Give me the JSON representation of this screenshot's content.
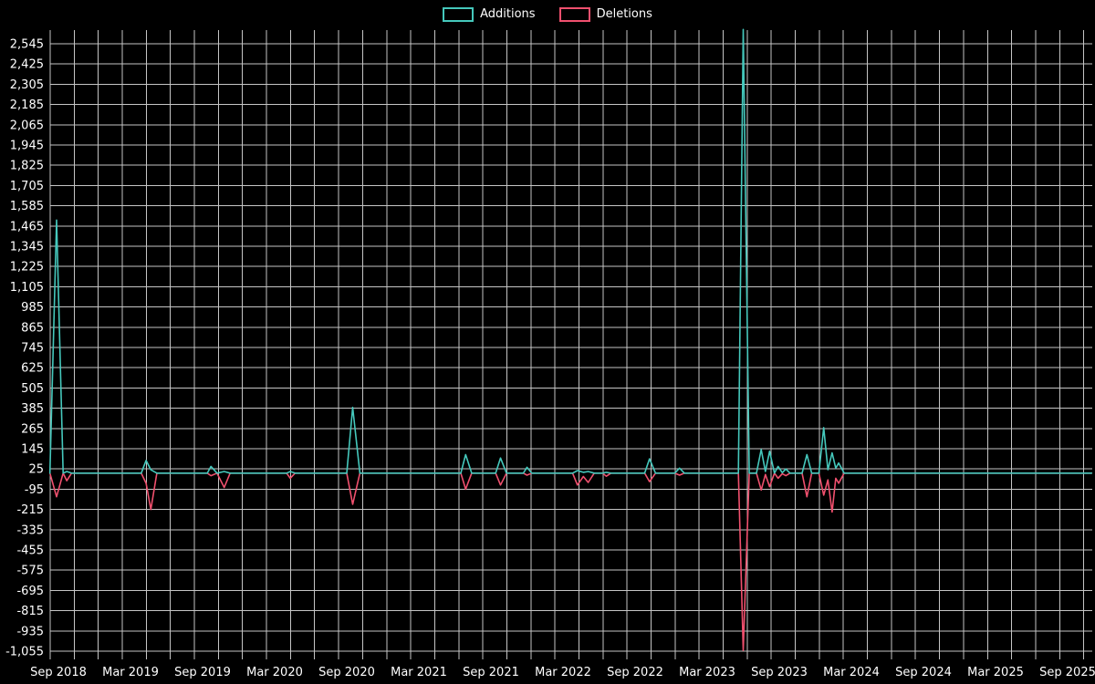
{
  "colors": {
    "background": "#000000",
    "grid": "#e8e8e8",
    "text": "#ffffff",
    "additions": "#45c8bc",
    "deletions": "#f0506e"
  },
  "legend": {
    "position": "top-center",
    "items": [
      {
        "label": "Additions",
        "color": "#45c8bc"
      },
      {
        "label": "Deletions",
        "color": "#f0506e"
      }
    ]
  },
  "chart_data": {
    "type": "line",
    "title": "",
    "grid": true,
    "legend_position": "top-center",
    "x_unit": "months since Sep 2018",
    "x_range": [
      -0.4,
      86.3
    ],
    "ylim": [
      -1090,
      2660
    ],
    "x_axis": {
      "labels": [
        "Sep 2018",
        "Mar 2019",
        "Sep 2019",
        "Mar 2020",
        "Sep 2020",
        "Mar 2021",
        "Sep 2021",
        "Mar 2022",
        "Sep 2022",
        "Mar 2023",
        "Sep 2023",
        "Mar 2024",
        "Sep 2024",
        "Mar 2025",
        "Sep 2025"
      ],
      "label_months": [
        0,
        6,
        12,
        18,
        24,
        30,
        36,
        42,
        48,
        54,
        60,
        66,
        72,
        78,
        84
      ]
    },
    "y_axis": {
      "tick_step": 120,
      "ticks": [
        2545,
        2425,
        2305,
        2185,
        2065,
        1945,
        1825,
        1705,
        1585,
        1465,
        1345,
        1225,
        1105,
        985,
        865,
        745,
        625,
        505,
        385,
        265,
        145,
        25,
        -95,
        -215,
        -335,
        -455,
        -575,
        -695,
        -815,
        -935,
        -1055
      ],
      "tick_labels": [
        "2,545",
        "2,425",
        "2,305",
        "2,185",
        "2,065",
        "1,945",
        "1,825",
        "1,705",
        "1,585",
        "1,465",
        "1,345",
        "1,225",
        "1,105",
        "985",
        "865",
        "745",
        "625",
        "505",
        "385",
        "265",
        "145",
        "25",
        "-95",
        "-215",
        "-335",
        "-455",
        "-575",
        "-695",
        "-815",
        "-935",
        "-1,055"
      ]
    },
    "x": [
      -0.4,
      0.15,
      0.7,
      1.0,
      1.4,
      7.2,
      7.6,
      8.0,
      8.5,
      12.7,
      13.0,
      13.5,
      14.1,
      14.6,
      19.3,
      19.6,
      20.0,
      24.3,
      24.8,
      25.4,
      33.8,
      34.2,
      34.7,
      36.7,
      37.1,
      37.6,
      39.0,
      39.3,
      39.7,
      43.1,
      43.5,
      44.0,
      44.4,
      44.9,
      45.6,
      45.9,
      46.3,
      49.1,
      49.5,
      50.0,
      51.6,
      52.0,
      52.4,
      56.9,
      57.3,
      57.8,
      58.4,
      58.8,
      59.15,
      59.5,
      59.9,
      60.2,
      60.55,
      60.85,
      61.2,
      62.2,
      62.6,
      63.0,
      63.6,
      64.0,
      64.35,
      64.7,
      65.0,
      65.25,
      65.7,
      86.3
    ],
    "series": [
      {
        "name": "Additions",
        "color": "#45c8bc",
        "values": [
          0,
          1500,
          0,
          10,
          0,
          0,
          75,
          20,
          0,
          0,
          40,
          0,
          10,
          0,
          0,
          10,
          0,
          0,
          390,
          0,
          0,
          110,
          0,
          0,
          90,
          0,
          0,
          35,
          0,
          0,
          15,
          5,
          10,
          0,
          0,
          5,
          0,
          0,
          85,
          0,
          0,
          30,
          0,
          0,
          2630,
          0,
          0,
          140,
          10,
          130,
          0,
          40,
          3,
          25,
          0,
          0,
          110,
          0,
          0,
          270,
          20,
          120,
          30,
          60,
          0,
          0
        ]
      },
      {
        "name": "Deletions",
        "color": "#f0506e",
        "values": [
          0,
          -140,
          0,
          -45,
          0,
          0,
          -60,
          -215,
          0,
          0,
          -15,
          0,
          -85,
          0,
          0,
          -30,
          0,
          0,
          -185,
          0,
          0,
          -95,
          0,
          0,
          -70,
          0,
          0,
          -12,
          0,
          0,
          -70,
          -20,
          -55,
          0,
          0,
          -18,
          0,
          0,
          -50,
          0,
          0,
          -12,
          0,
          0,
          -1050,
          0,
          0,
          -100,
          -8,
          -80,
          0,
          -30,
          -3,
          -15,
          0,
          0,
          -140,
          0,
          0,
          -130,
          -40,
          -230,
          -30,
          -60,
          0,
          0
        ]
      }
    ]
  }
}
